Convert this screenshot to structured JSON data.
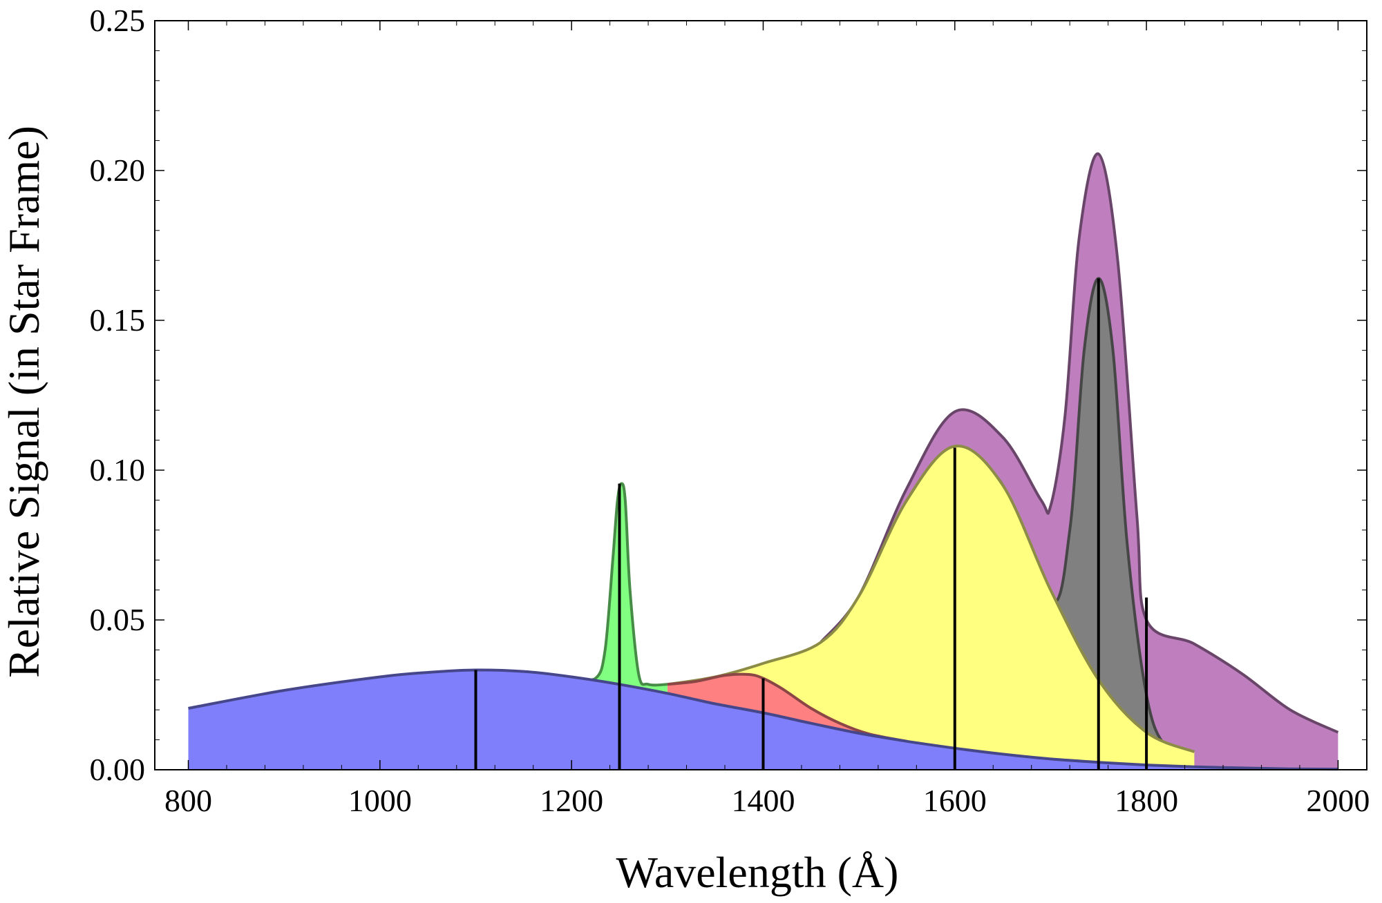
{
  "chart_data": {
    "type": "area",
    "title": "",
    "xlabel": "Wavelength (Å)",
    "ylabel": "Relative Signal (in Star Frame)",
    "xlim": [
      765,
      2030
    ],
    "ylim": [
      0,
      0.25
    ],
    "x_ticks": [
      "800",
      "1000",
      "1200",
      "1400",
      "1600",
      "1800",
      "2000"
    ],
    "y_ticks": [
      "0.00",
      "0.05",
      "0.10",
      "0.15",
      "0.20",
      "0.25"
    ],
    "grid": false,
    "legend": "none",
    "series": [
      {
        "color": "#7f7ffc",
        "x": [
          800,
          900,
          1000,
          1050,
          1100,
          1150,
          1200,
          1250,
          1300,
          1350,
          1400,
          1450,
          1500,
          1550,
          1600,
          1650,
          1700,
          1750,
          1800,
          1850,
          1900,
          1950,
          2000
        ],
        "y": [
          0.0205,
          0.0265,
          0.031,
          0.0325,
          0.0333,
          0.0328,
          0.031,
          0.0285,
          0.0255,
          0.022,
          0.019,
          0.0155,
          0.0122,
          0.0095,
          0.0072,
          0.0052,
          0.0036,
          0.0025,
          0.0016,
          0.001,
          0.0006,
          0.0003,
          0.0002
        ]
      },
      {
        "color": "#80ff80",
        "x": [
          1200,
          1225,
          1235,
          1243,
          1248,
          1252,
          1256,
          1261,
          1270,
          1280,
          1300
        ],
        "y": [
          0.031,
          0.0305,
          0.04,
          0.07,
          0.09,
          0.0955,
          0.09,
          0.06,
          0.032,
          0.0285,
          0.0285
        ]
      },
      {
        "color": "#ff8080",
        "x": [
          1300,
          1330,
          1360,
          1385,
          1400,
          1420,
          1450,
          1480,
          1510,
          1550
        ],
        "y": [
          0.0285,
          0.0295,
          0.0315,
          0.0318,
          0.0305,
          0.027,
          0.0205,
          0.0155,
          0.012,
          0.0095
        ]
      },
      {
        "color": "#ffff80",
        "x": [
          1300,
          1350,
          1400,
          1460,
          1500,
          1550,
          1600,
          1650,
          1700,
          1750,
          1800,
          1850
        ],
        "y": [
          0.0285,
          0.031,
          0.0355,
          0.0425,
          0.058,
          0.09,
          0.108,
          0.095,
          0.06,
          0.03,
          0.0125,
          0.006
        ]
      },
      {
        "color": "#808080",
        "x": [
          1600,
          1650,
          1700,
          1720,
          1735,
          1750,
          1765,
          1780,
          1800,
          1820,
          1850
        ],
        "y": [
          0.108,
          0.095,
          0.056,
          0.08,
          0.14,
          0.164,
          0.14,
          0.075,
          0.025,
          0.008,
          0.006
        ]
      },
      {
        "color": "#bf7fbf",
        "x": [
          1460,
          1500,
          1550,
          1600,
          1650,
          1690,
          1700,
          1715,
          1730,
          1750,
          1770,
          1790,
          1800,
          1850,
          1900,
          1950,
          2000
        ],
        "y": [
          0.0425,
          0.058,
          0.094,
          0.1195,
          0.111,
          0.09,
          0.088,
          0.118,
          0.178,
          0.2055,
          0.17,
          0.085,
          0.05,
          0.042,
          0.032,
          0.02,
          0.0125
        ]
      }
    ],
    "markers": [
      {
        "x": 1100,
        "y": 0.0333
      },
      {
        "x": 1250,
        "y": 0.0955
      },
      {
        "x": 1400,
        "y": 0.0305
      },
      {
        "x": 1600,
        "y": 0.1075
      },
      {
        "x": 1750,
        "y": 0.164
      },
      {
        "x": 1800,
        "y": 0.0575
      }
    ]
  }
}
